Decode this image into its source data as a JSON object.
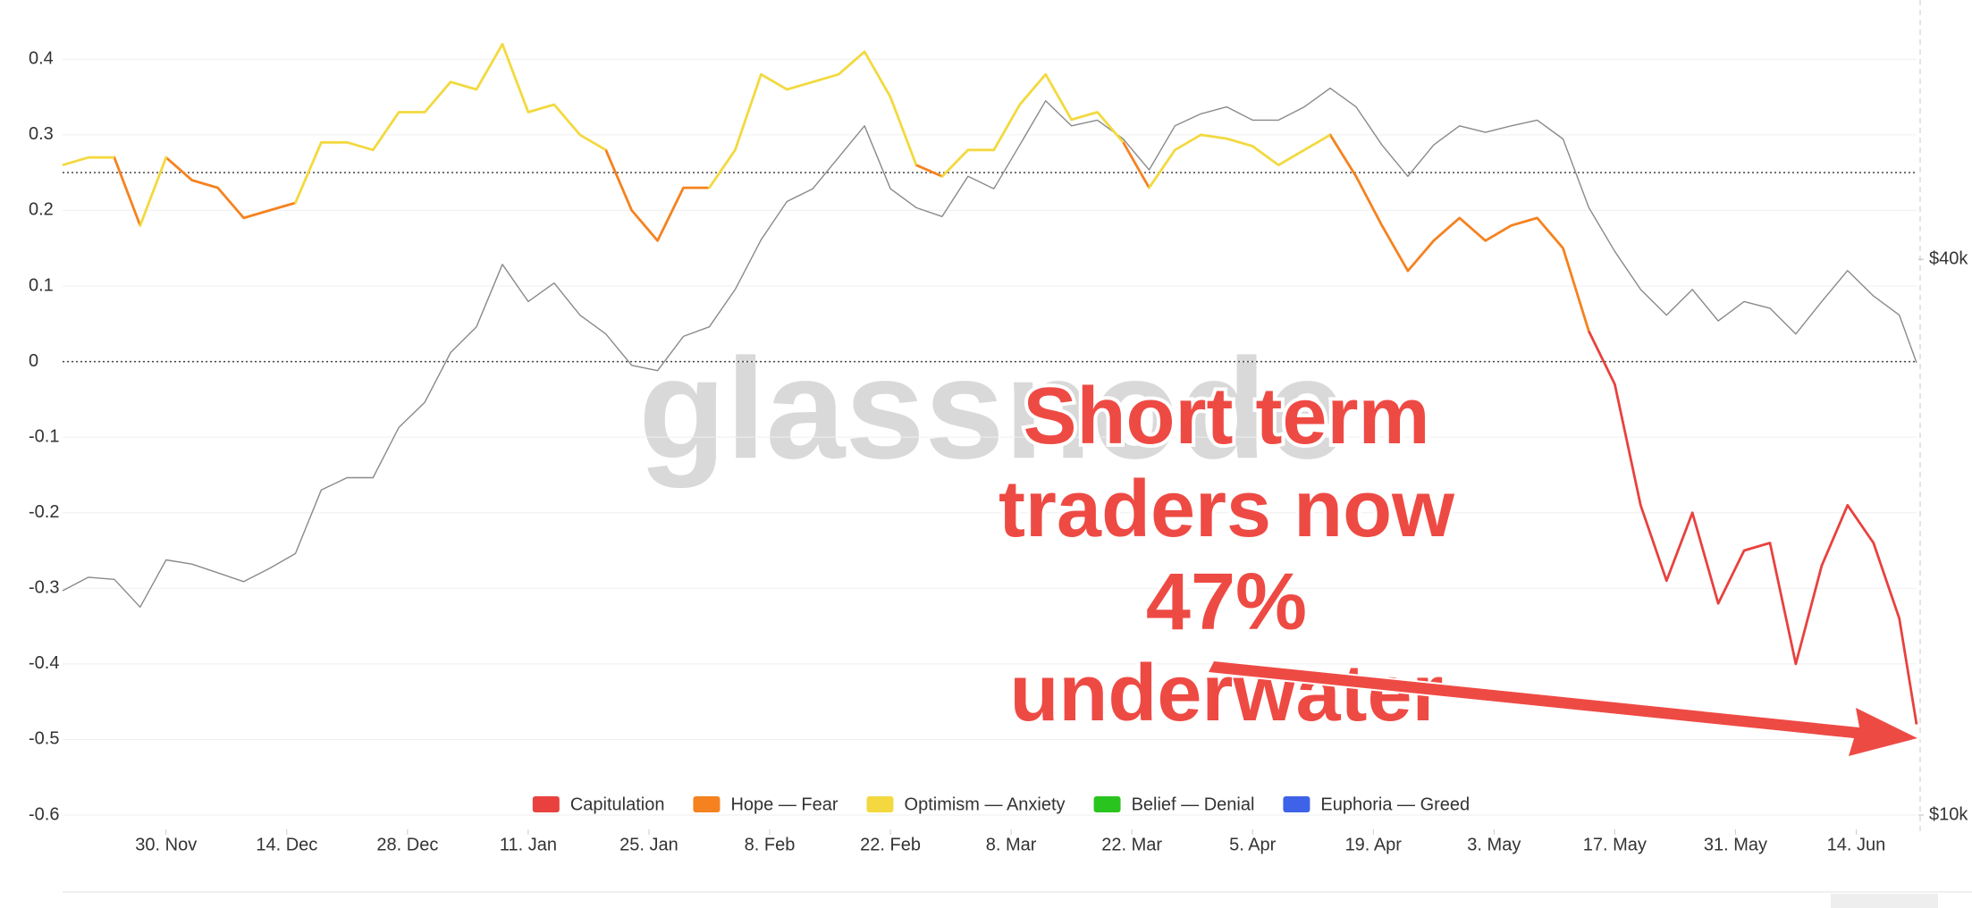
{
  "chart_data": {
    "type": "line",
    "watermark": "glassnode",
    "annotation": [
      "Short term",
      "traders now",
      "47%",
      "underwater"
    ],
    "x": [
      "18. Nov",
      "21. Nov",
      "24. Nov",
      "27. Nov",
      "30. Nov",
      "3. Dec",
      "6. Dec",
      "9. Dec",
      "12. Dec",
      "15. Dec",
      "18. Dec",
      "21. Dec",
      "24. Dec",
      "27. Dec",
      "30. Dec",
      "2. Jan",
      "5. Jan",
      "8. Jan",
      "11. Jan",
      "14. Jan",
      "17. Jan",
      "20. Jan",
      "23. Jan",
      "26. Jan",
      "29. Jan",
      "1. Feb",
      "4. Feb",
      "7. Feb",
      "10. Feb",
      "13. Feb",
      "16. Feb",
      "19. Feb",
      "22. Feb",
      "25. Feb",
      "28. Feb",
      "3. Mar",
      "6. Mar",
      "9. Mar",
      "12. Mar",
      "15. Mar",
      "18. Mar",
      "21. Mar",
      "24. Mar",
      "27. Mar",
      "30. Mar",
      "2. Apr",
      "5. Apr",
      "8. Apr",
      "11. Apr",
      "14. Apr",
      "17. Apr",
      "20. Apr",
      "23. Apr",
      "26. Apr",
      "29. Apr",
      "2. May",
      "5. May",
      "8. May",
      "11. May",
      "14. May",
      "17. May",
      "20. May",
      "23. May",
      "26. May",
      "29. May",
      "1. Jun",
      "4. Jun",
      "7. Jun",
      "10. Jun",
      "13. Jun",
      "16. Jun",
      "19. Jun",
      "21. Jun"
    ],
    "xlim": [
      "18. Nov",
      "21. Jun"
    ],
    "xticks": [
      "30. Nov",
      "14. Dec",
      "28. Dec",
      "11. Jan",
      "25. Jan",
      "8. Feb",
      "22. Feb",
      "8. Mar",
      "22. Mar",
      "5. Apr",
      "19. Apr",
      "3. May",
      "17. May",
      "31. May",
      "14. Jun"
    ],
    "ylim": [
      -0.6,
      0.45
    ],
    "yticks": [
      0.4,
      0.3,
      0.2,
      0.1,
      0,
      -0.1,
      -0.2,
      -0.3,
      -0.4,
      -0.5,
      -0.6
    ],
    "y2lim": [
      10000,
      72400
    ],
    "y2log": true,
    "y2ticks": [
      {
        "value": 40000,
        "label": "$40k"
      },
      {
        "value": 10000,
        "label": "$10k"
      }
    ],
    "grid": true,
    "reference_lines": [
      0.25,
      0
    ],
    "legend": "bottom",
    "series": [
      {
        "name": "Capitulation",
        "color": "#e8413e",
        "values": [
          null,
          null,
          null,
          null,
          null,
          null,
          null,
          null,
          null,
          null,
          null,
          null,
          null,
          null,
          null,
          null,
          null,
          null,
          null,
          null,
          null,
          null,
          null,
          null,
          null,
          null,
          null,
          null,
          null,
          null,
          null,
          null,
          null,
          null,
          null,
          null,
          null,
          null,
          null,
          null,
          null,
          null,
          null,
          null,
          null,
          null,
          null,
          null,
          null,
          null,
          null,
          null,
          null,
          null,
          null,
          null,
          null,
          null,
          null,
          null,
          -0.03,
          -0.19,
          -0.29,
          -0.2,
          -0.32,
          -0.25,
          -0.24,
          -0.4,
          -0.27,
          -0.19,
          -0.24,
          -0.34,
          -0.48
        ]
      },
      {
        "name": "Hope — Fear",
        "color": "#f5821f",
        "values": [
          null,
          null,
          null,
          0.18,
          null,
          0.24,
          0.23,
          0.19,
          0.2,
          0.21,
          null,
          null,
          null,
          null,
          null,
          null,
          null,
          null,
          null,
          null,
          null,
          null,
          0.2,
          0.16,
          0.23,
          0.23,
          null,
          null,
          null,
          null,
          null,
          null,
          null,
          null,
          0.245,
          null,
          null,
          null,
          null,
          null,
          null,
          null,
          0.23,
          null,
          null,
          null,
          null,
          null,
          null,
          null,
          0.245,
          0.18,
          0.12,
          0.16,
          0.19,
          0.16,
          0.18,
          0.19,
          0.15,
          0.04,
          null,
          null,
          null,
          null,
          null,
          null,
          null,
          null,
          null,
          null,
          null,
          null,
          null
        ]
      },
      {
        "name": "Optimism — Anxiety",
        "color": "#f3d93f",
        "values": [
          0.26,
          0.27,
          0.27,
          null,
          0.27,
          null,
          null,
          null,
          null,
          null,
          0.29,
          0.29,
          0.28,
          0.33,
          0.33,
          0.37,
          0.36,
          0.42,
          0.33,
          0.34,
          0.3,
          0.28,
          null,
          null,
          null,
          null,
          0.28,
          0.38,
          0.36,
          0.37,
          0.38,
          0.41,
          0.35,
          0.26,
          null,
          0.28,
          0.28,
          0.34,
          0.38,
          0.32,
          0.33,
          0.29,
          null,
          0.28,
          0.3,
          0.295,
          0.285,
          0.26,
          0.28,
          0.3,
          null,
          null,
          null,
          null,
          null,
          null,
          null,
          null,
          null,
          null,
          null,
          null,
          null,
          null,
          null,
          null,
          null,
          null,
          null,
          null,
          null,
          null,
          null
        ]
      },
      {
        "name": "Belief — Denial",
        "color": "#2ac41e"
      },
      {
        "name": "Euphoria — Greed",
        "color": "#3e63e8"
      },
      {
        "color": "#8a8a8a",
        "axis": "y2",
        "values": [
          17500,
          18100,
          18000,
          16800,
          18900,
          18700,
          18300,
          17900,
          18500,
          19200,
          22500,
          23200,
          23200,
          26300,
          28000,
          31700,
          33800,
          39500,
          36000,
          37700,
          34800,
          33200,
          30700,
          30300,
          33000,
          33800,
          37100,
          42000,
          46200,
          47700,
          51600,
          55800,
          47700,
          45500,
          44500,
          49200,
          47700,
          53200,
          59400,
          55800,
          56600,
          54000,
          50000,
          55800,
          57500,
          58500,
          56600,
          56600,
          58500,
          61300,
          58500,
          53200,
          49200,
          53200,
          55800,
          54900,
          55800,
          56600,
          54000,
          45500,
          40800,
          37100,
          34800,
          37100,
          34300,
          36000,
          35400,
          33200,
          36000,
          38900,
          36500,
          34800,
          30900
        ]
      }
    ]
  }
}
